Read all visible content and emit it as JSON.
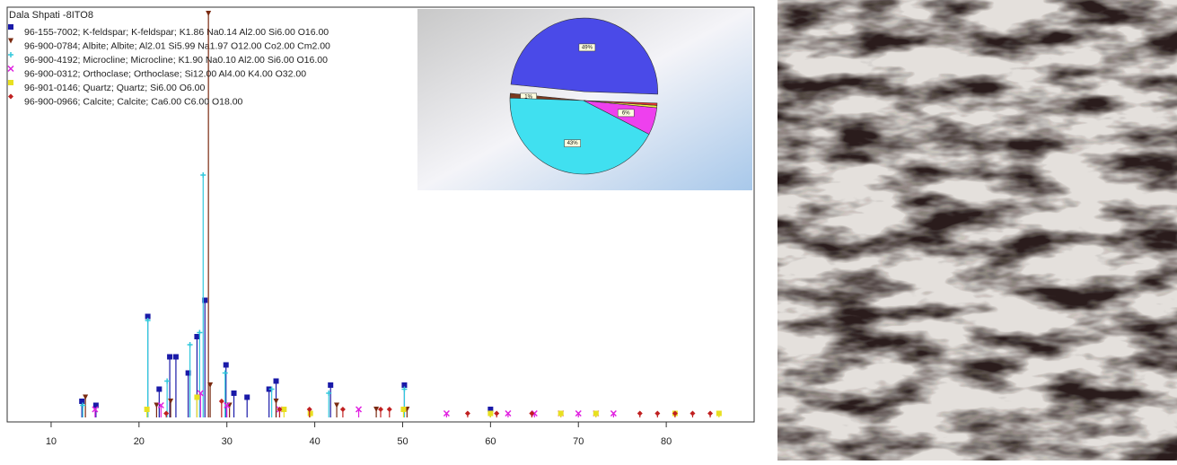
{
  "chart_data": [
    {
      "type": "stem",
      "title": "Dala Shpati -8ITO8",
      "xlim": [
        5,
        90
      ],
      "xticks": [
        10,
        20,
        30,
        40,
        50,
        60,
        70,
        80
      ],
      "ylim": [
        0,
        100
      ],
      "series": [
        {
          "name": "96-155-7002; K-feldspar; K-feldspar; K1.86 Na0.14 Al2.00 Si6.00 O16.00",
          "color": "#1a1aa8",
          "marker": "square",
          "x": [
            13.5,
            15.1,
            21.0,
            22.3,
            23.5,
            24.2,
            25.6,
            26.6,
            27.5,
            29.9,
            30.8,
            32.3,
            34.8,
            35.6,
            41.8,
            50.2,
            60.0
          ],
          "values": [
            4,
            3,
            25,
            7,
            15,
            15,
            11,
            20,
            29,
            13,
            6,
            5,
            7,
            9,
            8,
            8,
            2
          ]
        },
        {
          "name": "96-900-0784; Albite; Albite; Al2.01 Si5.99 Na1.97 O12.00 Co2.00 Cm2.00",
          "color": "#7a2a10",
          "marker": "triangle",
          "x": [
            13.9,
            22.0,
            23.6,
            27.9,
            28.1,
            30.3,
            35.6,
            42.5,
            47.0,
            50.5
          ],
          "values": [
            5,
            3,
            4,
            100,
            8,
            3,
            4,
            3,
            2,
            2
          ]
        },
        {
          "name": "96-900-4192; Microcline; Microcline; K1.90 Na0.10 Al2.00 Si6.00 O16.00",
          "color": "#30c8dc",
          "marker": "plus",
          "x": [
            13.6,
            21.0,
            23.2,
            25.8,
            26.9,
            27.3,
            29.8,
            35.1,
            41.6,
            50.2
          ],
          "values": [
            3,
            24,
            9,
            18,
            21,
            60,
            11,
            7,
            6,
            7
          ]
        },
        {
          "name": "96-900-0312; Orthoclase; Orthoclase; Si12.00 Al4.00 K4.00 O32.00",
          "color": "#e020e0",
          "marker": "cross",
          "x": [
            15.0,
            22.5,
            27.0,
            30.0,
            36.0,
            45.0,
            55.0,
            62.0,
            65.0,
            68.0,
            70.0,
            72.0,
            74.0
          ],
          "values": [
            2,
            3,
            6,
            3,
            2,
            2,
            1,
            1,
            1,
            1,
            1,
            1,
            1
          ]
        },
        {
          "name": "96-901-0146; Quartz; Quartz; Si6.00 O6.00",
          "color": "#e8e020",
          "marker": "square",
          "x": [
            20.9,
            26.6,
            36.5,
            39.5,
            50.1,
            60.0,
            68.0,
            72.0,
            81.0,
            86.0
          ],
          "values": [
            2,
            5,
            2,
            1,
            2,
            1,
            1,
            1,
            1,
            1
          ]
        },
        {
          "name": "96-900-0966; Calcite; Calcite; Ca6.00 C6.00 O18.00",
          "color": "#c02020",
          "marker": "diamond",
          "x": [
            23.1,
            29.4,
            36.0,
            39.4,
            43.2,
            47.5,
            48.5,
            57.4,
            60.7,
            64.7,
            77.0,
            79.0,
            81.0,
            83.0,
            85.0
          ],
          "values": [
            1,
            4,
            2,
            2,
            2,
            2,
            2,
            1,
            1,
            1,
            1,
            1,
            1,
            1,
            1
          ]
        }
      ]
    },
    {
      "type": "pie",
      "values": [
        49,
        1,
        43,
        6,
        0.5,
        0.5
      ],
      "value_labels": [
        "49%",
        "1%",
        "43%",
        "6%",
        null,
        null
      ],
      "colors": [
        "#4a4ae8",
        "#7a3a20",
        "#40e0f0",
        "#ee40ee",
        "#f0f040",
        "#e03030"
      ]
    }
  ]
}
